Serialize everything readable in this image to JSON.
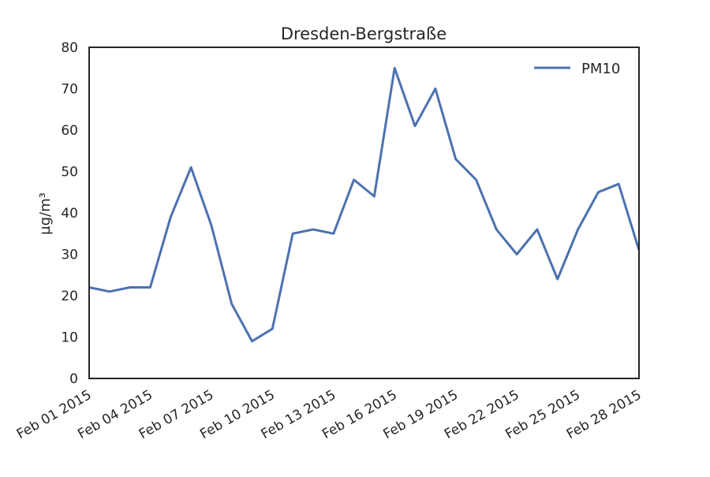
{
  "chart_data": {
    "type": "line",
    "title": "Dresden-Bergstraße",
    "ylabel": "µg/m³",
    "xlabel": "",
    "ylim": [
      0,
      80
    ],
    "yticks": [
      0,
      10,
      20,
      30,
      40,
      50,
      60,
      70,
      80
    ],
    "xlim": [
      "2015-02-01",
      "2015-02-28"
    ],
    "xtick_dates": [
      "2015-02-01",
      "2015-02-04",
      "2015-02-07",
      "2015-02-10",
      "2015-02-13",
      "2015-02-16",
      "2015-02-19",
      "2015-02-22",
      "2015-02-25",
      "2015-02-28"
    ],
    "xtick_labels": [
      "Feb 01 2015",
      "Feb 04 2015",
      "Feb 07 2015",
      "Feb 10 2015",
      "Feb 13 2015",
      "Feb 16 2015",
      "Feb 19 2015",
      "Feb 22 2015",
      "Feb 25 2015",
      "Feb 28 2015"
    ],
    "grid": false,
    "legend_position": "top-right",
    "series": [
      {
        "name": "PM10",
        "color": "#4c72b0",
        "x": [
          "2015-02-01",
          "2015-02-02",
          "2015-02-03",
          "2015-02-04",
          "2015-02-05",
          "2015-02-06",
          "2015-02-07",
          "2015-02-08",
          "2015-02-09",
          "2015-02-10",
          "2015-02-11",
          "2015-02-12",
          "2015-02-13",
          "2015-02-14",
          "2015-02-15",
          "2015-02-16",
          "2015-02-17",
          "2015-02-18",
          "2015-02-19",
          "2015-02-20",
          "2015-02-21",
          "2015-02-22",
          "2015-02-23",
          "2015-02-24",
          "2015-02-25",
          "2015-02-26",
          "2015-02-27",
          "2015-02-28"
        ],
        "values": [
          22,
          21,
          22,
          22,
          39,
          51,
          37,
          18,
          9,
          12,
          35,
          36,
          35,
          48,
          44,
          75,
          61,
          70,
          53,
          48,
          36,
          30,
          36,
          24,
          36,
          45,
          47,
          31
        ]
      }
    ]
  }
}
